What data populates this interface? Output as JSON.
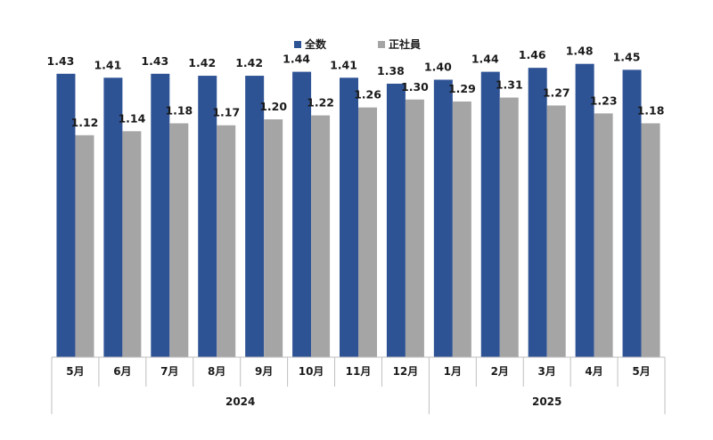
{
  "chart_data": {
    "type": "bar",
    "categories": [
      "5月",
      "6月",
      "7月",
      "8月",
      "9月",
      "10月",
      "11月",
      "12月",
      "1月",
      "2月",
      "3月",
      "4月",
      "5月"
    ],
    "groups": [
      {
        "label": "2024",
        "count": 8
      },
      {
        "label": "2025",
        "count": 5
      }
    ],
    "series": [
      {
        "name": "全数",
        "color": "#2E5395",
        "values": [
          1.43,
          1.41,
          1.43,
          1.42,
          1.42,
          1.44,
          1.41,
          1.38,
          1.4,
          1.44,
          1.46,
          1.48,
          1.45
        ]
      },
      {
        "name": "正社員",
        "color": "#A5A5A5",
        "values": [
          1.12,
          1.14,
          1.18,
          1.17,
          1.2,
          1.22,
          1.26,
          1.3,
          1.29,
          1.31,
          1.27,
          1.23,
          1.18
        ]
      }
    ],
    "ylim": [
      0,
      1.6
    ],
    "grid": false,
    "legend_position": "top-center",
    "data_labels": true,
    "label_decimals": 2
  }
}
